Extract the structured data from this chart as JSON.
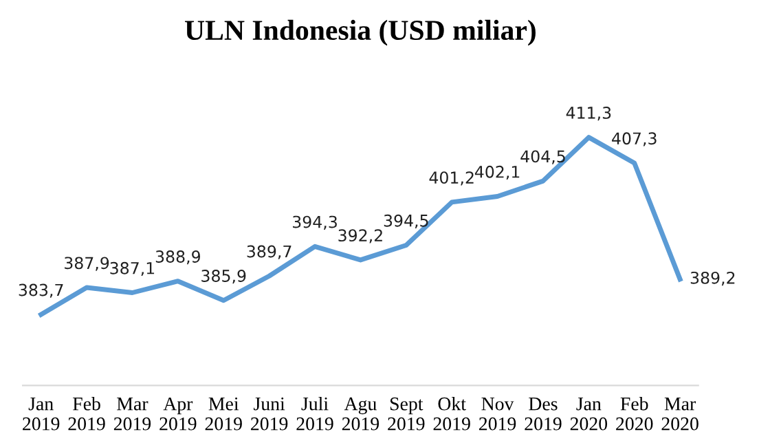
{
  "chart_data": {
    "type": "line",
    "title": "ULN Indonesia (USD miliar)",
    "categories": [
      "Jan\n2019",
      "Feb\n2019",
      "Mar\n2019",
      "Apr\n2019",
      "Mei\n2019",
      "Juni\n2019",
      "Juli\n2019",
      "Agu\n2019",
      "Sept\n2019",
      "Okt\n2019",
      "Nov\n2019",
      "Des\n2019",
      "Jan\n2020",
      "Feb\n2020",
      "Mar\n2020"
    ],
    "series": [
      {
        "color": "#5b9bd5",
        "values": [
          383.7,
          387.9,
          387.1,
          388.9,
          385.9,
          389.7,
          394.3,
          392.2,
          394.5,
          401.2,
          402.1,
          404.5,
          411.3,
          407.3,
          389.2
        ],
        "value_labels": [
          "383,7",
          "387,9",
          "387,1",
          "388,9",
          "385,9",
          "389,7",
          "394,3",
          "392,2",
          "394,5",
          "401,2",
          "402,1",
          "404,5",
          "411,3",
          "407,3",
          "389,2"
        ]
      }
    ],
    "tick_labels": "x",
    "grid": false,
    "legend": false,
    "marker": "none",
    "line_style": "solid"
  }
}
